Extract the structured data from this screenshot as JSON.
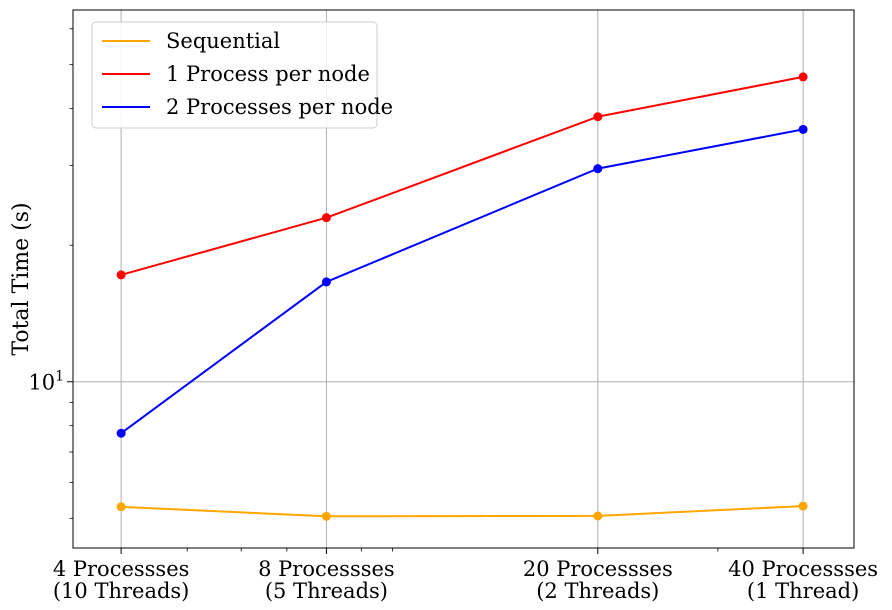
{
  "chart_data": {
    "type": "line",
    "x_scale": "log",
    "y_scale": "log",
    "x": [
      4,
      8,
      20,
      40
    ],
    "categories": [
      [
        "4 Processses",
        "(10 Threads)"
      ],
      [
        "8 Processses",
        "(5 Threads)"
      ],
      [
        "20 Processses",
        "(2 Threads)"
      ],
      [
        "40 Processses",
        "(1 Thread)"
      ]
    ],
    "ylabel": "Total Time (s)",
    "y_tick_labels": [
      {
        "value": 10,
        "base": "10",
        "exp": "1"
      }
    ],
    "ylim": [
      4.3,
      66
    ],
    "grid": true,
    "legend_position": "top-left",
    "series": [
      {
        "name": "Sequential",
        "color": "#ffa500",
        "values": [
          5.3,
          5.05,
          5.06,
          5.32
        ]
      },
      {
        "name": "1 Process per node",
        "color": "#ff0000",
        "values": [
          17.2,
          23.0,
          38.4,
          47.0
        ]
      },
      {
        "name": "2 Processes per node",
        "color": "#0000ff",
        "values": [
          7.7,
          16.6,
          29.5,
          36.0
        ]
      }
    ]
  }
}
